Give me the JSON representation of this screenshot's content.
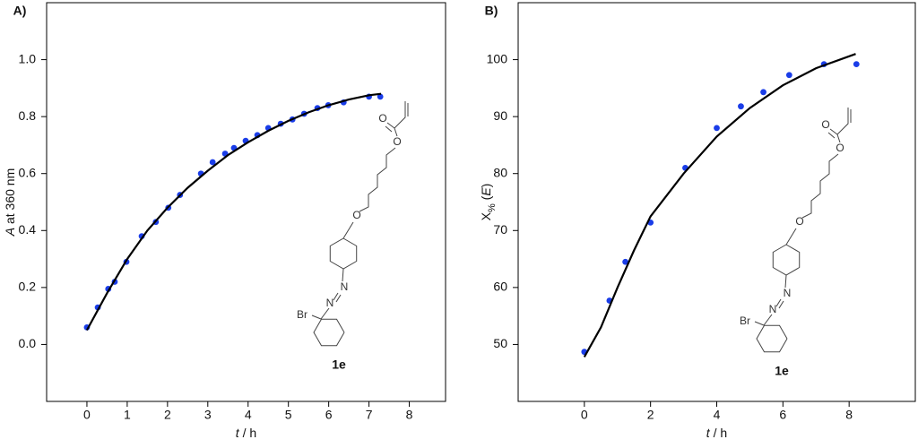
{
  "chart_data": [
    {
      "type": "scatter",
      "title": "A)",
      "xlabel": [
        "t",
        "/ h"
      ],
      "ylabel": [
        "A",
        " at 360 nm"
      ],
      "xlim": [
        -1,
        8.9
      ],
      "ylim": [
        -0.2,
        1.2
      ],
      "xticks": [
        0,
        1,
        2,
        3,
        4,
        5,
        6,
        7,
        8
      ],
      "yticks": [
        {
          "value": 0,
          "label": "0.0"
        },
        0.2,
        0.4,
        0.6,
        0.8,
        {
          "value": 1,
          "label": "1.0"
        }
      ],
      "series": [
        {
          "type": "scatter",
          "color": "#1a3de8",
          "x": [
            0,
            0.27,
            0.53,
            0.69,
            0.98,
            1.36,
            1.71,
            2.02,
            2.31,
            2.83,
            3.12,
            3.43,
            3.65,
            3.94,
            4.23,
            4.5,
            4.81,
            5.1,
            5.39,
            5.72,
            5.99,
            6.37,
            7.0,
            7.28
          ],
          "values": [
            0.06,
            0.13,
            0.195,
            0.22,
            0.29,
            0.38,
            0.43,
            0.48,
            0.525,
            0.6,
            0.64,
            0.67,
            0.69,
            0.715,
            0.735,
            0.76,
            0.775,
            0.79,
            0.81,
            0.83,
            0.84,
            0.85,
            0.87,
            0.87
          ]
        },
        {
          "type": "line",
          "color": "#000000",
          "x": [
            0,
            0.5,
            1,
            1.5,
            2,
            2.5,
            3,
            3.5,
            4,
            4.5,
            5,
            5.5,
            6,
            6.5,
            7,
            7.3
          ],
          "values": [
            0.05,
            0.18,
            0.3,
            0.4,
            0.48,
            0.55,
            0.61,
            0.665,
            0.71,
            0.75,
            0.785,
            0.815,
            0.84,
            0.86,
            0.875,
            0.88
          ]
        }
      ],
      "annotation": "1e",
      "atoms": [
        "O",
        "O",
        "O",
        "N",
        "N",
        "Br"
      ]
    },
    {
      "type": "scatter",
      "title": "B)",
      "xlabel": [
        "t",
        "/ h"
      ],
      "ylabel": [
        "X",
        "%",
        " (",
        "E",
        ")"
      ],
      "xlim": [
        -2,
        10
      ],
      "ylim": [
        40,
        110
      ],
      "xticks": [
        0,
        2,
        4,
        6,
        8
      ],
      "yticks": [
        50,
        60,
        70,
        80,
        90,
        100
      ],
      "series": [
        {
          "type": "scatter",
          "color": "#1a3de8",
          "x": [
            0,
            0.76,
            1.24,
            2,
            3.05,
            4,
            4.73,
            5.41,
            6.19,
            7.24,
            8.22
          ],
          "values": [
            48.7,
            57.7,
            64.5,
            71.4,
            81,
            88,
            91.8,
            94.3,
            97.3,
            99.2,
            99.2
          ]
        },
        {
          "type": "line",
          "color": "#000000",
          "x": [
            0,
            0.5,
            1,
            1.5,
            2,
            3,
            4,
            5,
            6,
            7,
            8.2
          ],
          "values": [
            47.8,
            53,
            60,
            66.5,
            72.5,
            80,
            86.5,
            91.5,
            95.5,
            98.5,
            101
          ]
        }
      ],
      "annotation": "1e",
      "atoms": [
        "O",
        "O",
        "O",
        "N",
        "N",
        "Br"
      ]
    }
  ]
}
